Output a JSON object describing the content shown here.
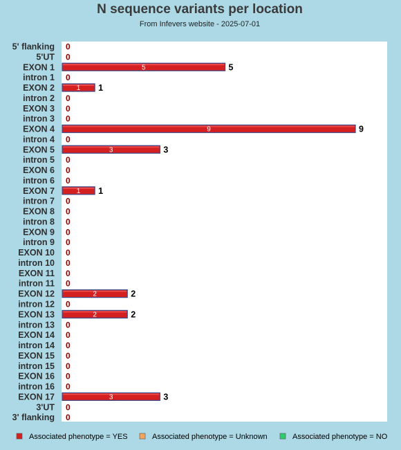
{
  "chart_data": {
    "type": "bar",
    "orientation": "horizontal",
    "title": "N sequence variants per location",
    "subtitle": "From Infevers website - 2025-07-01",
    "categories": [
      "5' flanking",
      "5'UT",
      "EXON 1",
      "intron 1",
      "EXON 2",
      "intron 2",
      "EXON 3",
      "intron 3",
      "EXON 4",
      "intron 4",
      "EXON 5",
      "intron 5",
      "EXON 6",
      "intron 6",
      "EXON 7",
      "intron 7",
      "EXON 8",
      "intron 8",
      "EXON 9",
      "intron 9",
      "EXON 10",
      "intron 10",
      "EXON 11",
      "intron 11",
      "EXON 12",
      "intron 12",
      "EXON 13",
      "intron 13",
      "EXON 14",
      "intron 14",
      "EXON 15",
      "intron 15",
      "EXON 16",
      "intron 16",
      "EXON 17",
      "3'UT",
      "3' flanking"
    ],
    "values": [
      0,
      0,
      5,
      0,
      1,
      0,
      0,
      0,
      9,
      0,
      3,
      0,
      0,
      0,
      1,
      0,
      0,
      0,
      0,
      0,
      0,
      0,
      0,
      0,
      2,
      0,
      2,
      0,
      0,
      0,
      0,
      0,
      0,
      0,
      3,
      0,
      0
    ],
    "xlim": [
      0,
      9
    ],
    "grid": false,
    "legend": [
      {
        "label": "Associated phenotype = YES",
        "color": "#d42020"
      },
      {
        "label": "Associated phenotype = Unknown",
        "color": "#f4a460"
      },
      {
        "label": "Associated phenotype = NO",
        "color": "#2ecc71"
      }
    ],
    "legend_position": "bottom"
  },
  "colors": {
    "background": "#add8e6",
    "plot_background": "#ffffff",
    "bar_fill": "#d42020",
    "bar_outline": "#3b4a8a",
    "zero_label": "#8b0000"
  }
}
